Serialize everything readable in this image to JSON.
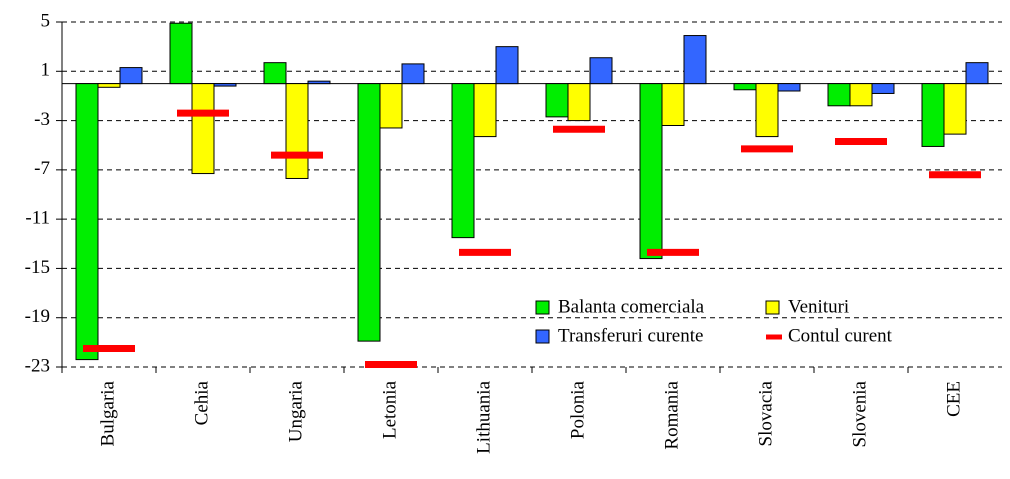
{
  "chart_data": {
    "type": "bar",
    "categories": [
      "Bulgaria",
      "Cehia",
      "Ungaria",
      "Letonia",
      "Lithuania",
      "Polonia",
      "Romania",
      "Slovacia",
      "Slovenia",
      "CEE"
    ],
    "series": [
      {
        "name": "Balanta comerciala",
        "color": "#00ee00",
        "style": "bar",
        "values": [
          -22.4,
          4.9,
          1.7,
          -20.9,
          -12.5,
          -2.7,
          -14.2,
          -0.5,
          -1.8,
          -5.1
        ]
      },
      {
        "name": "Venituri",
        "color": "#ffff00",
        "style": "bar",
        "values": [
          -0.3,
          -7.3,
          -7.7,
          -3.6,
          -4.3,
          -3.0,
          -3.4,
          -4.3,
          -1.8,
          -4.1
        ]
      },
      {
        "name": "Transferuri curente",
        "color": "#3366ff",
        "style": "bar",
        "values": [
          1.3,
          -0.2,
          0.2,
          1.6,
          3.0,
          2.1,
          3.9,
          -0.6,
          -0.8,
          1.7
        ]
      },
      {
        "name": "Contul curent",
        "color": "#ff0000",
        "style": "dash",
        "values": [
          -21.5,
          -2.4,
          -5.8,
          -22.8,
          -13.7,
          -3.7,
          -13.7,
          -5.3,
          -4.7,
          -7.4
        ]
      }
    ],
    "ylim": [
      -23,
      5
    ],
    "yticks": [
      5,
      1,
      -3,
      -7,
      -11,
      -15,
      -19,
      -23
    ],
    "grid": true
  }
}
